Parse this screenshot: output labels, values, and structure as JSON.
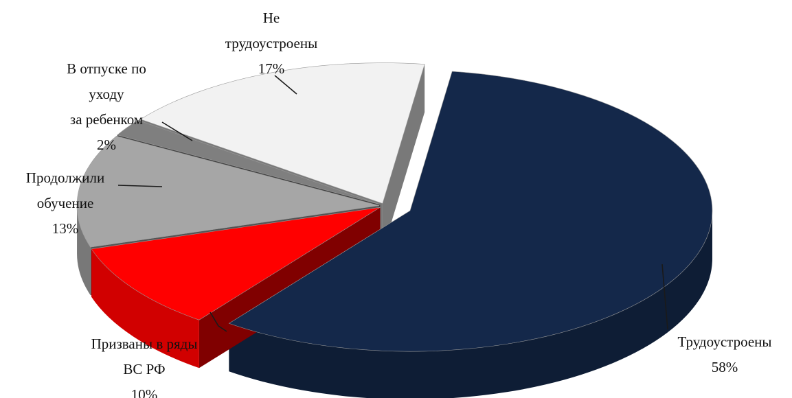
{
  "chart_data": {
    "type": "pie",
    "title": "",
    "legend": "none",
    "style": "3d-exploded",
    "slices": [
      {
        "label_lines": [
          "Трудоустроены"
        ],
        "percent_label": "58%",
        "value": 58,
        "color": "#14284a"
      },
      {
        "label_lines": [
          "Призваны в ряды",
          "ВС РФ"
        ],
        "percent_label": "10%",
        "value": 10,
        "color": "#ff0000"
      },
      {
        "label_lines": [
          "Продолжили",
          "обучение"
        ],
        "percent_label": "13%",
        "value": 13,
        "color": "#a6a6a6"
      },
      {
        "label_lines": [
          "В отпуске по",
          "уходу",
          "за ребенком"
        ],
        "percent_label": "2%",
        "value": 2,
        "color": "#7f7f7f"
      },
      {
        "label_lines": [
          "Не",
          "трудоустроены"
        ],
        "percent_label": "17%",
        "value": 17,
        "color": "#f2f2f2"
      }
    ]
  }
}
